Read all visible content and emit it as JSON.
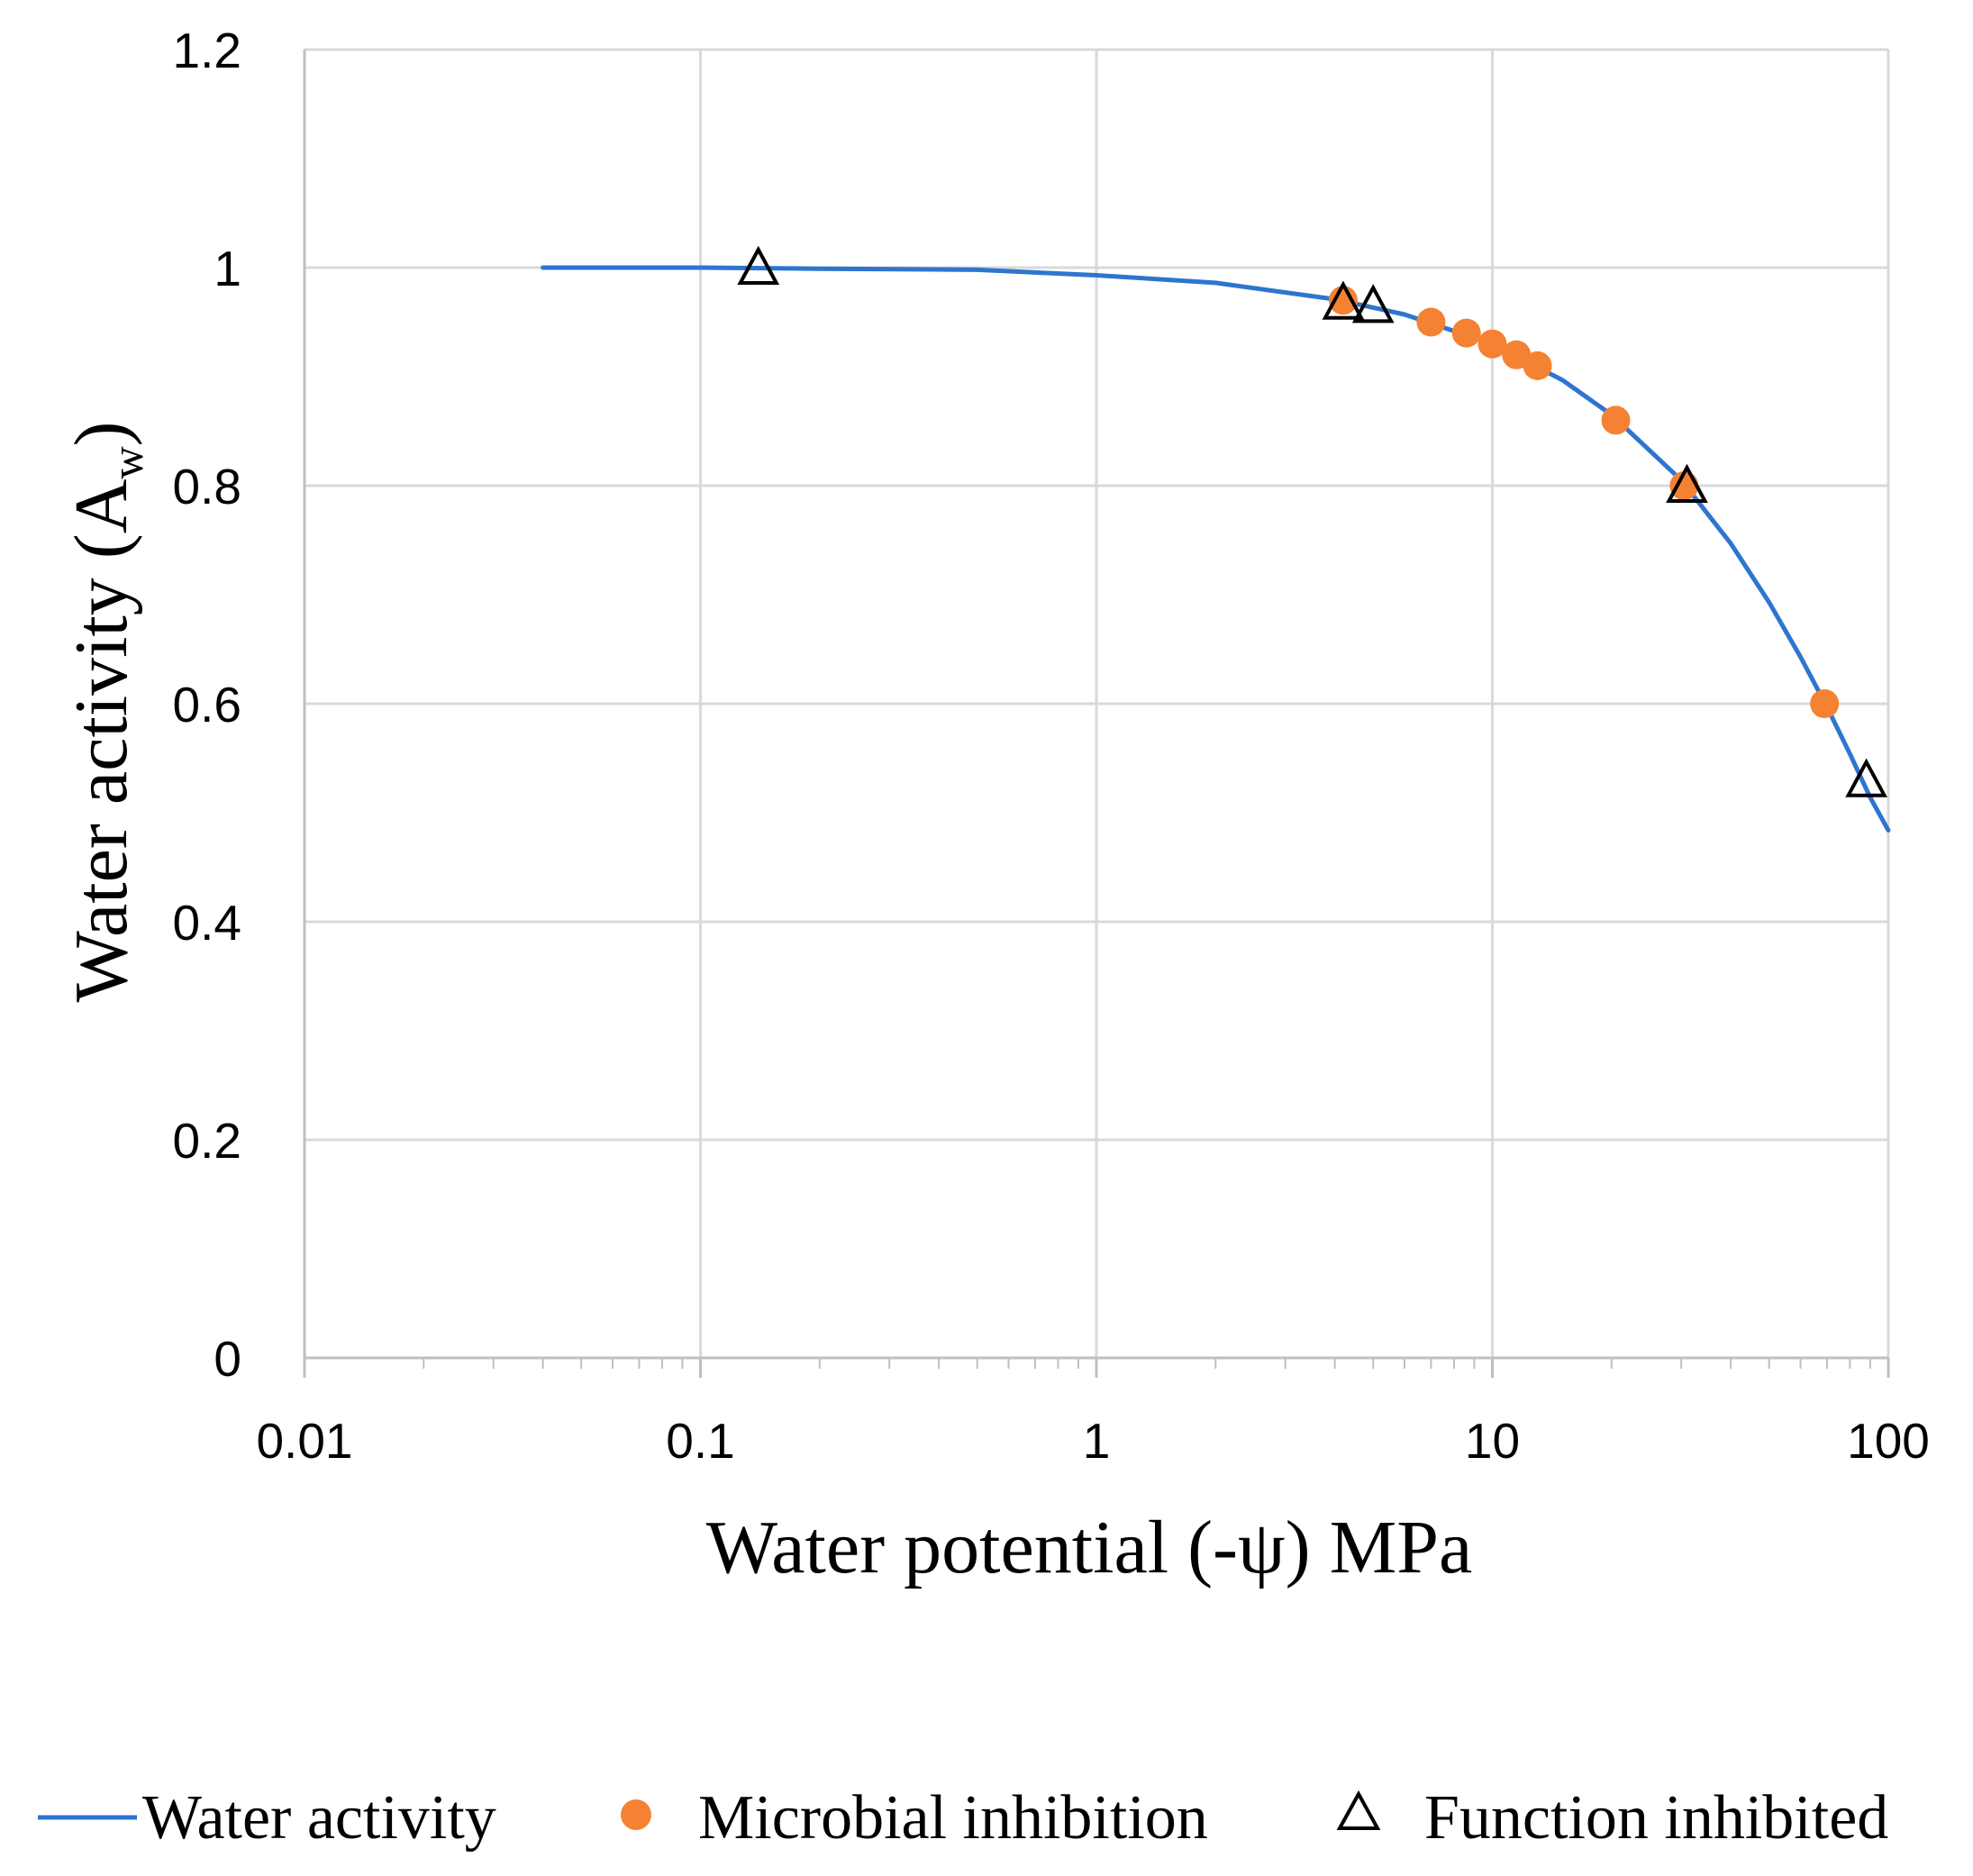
{
  "chart_data": {
    "type": "line",
    "x_scale": "log",
    "xlabel": "Water potential (-ψ) MPa",
    "ylabel_main": "Water activity (A",
    "ylabel_sub": "w",
    "ylabel_close": ")",
    "xlim": [
      0.01,
      100
    ],
    "ylim": [
      0,
      1.2
    ],
    "x_ticks": [
      0.01,
      0.1,
      1,
      10,
      100
    ],
    "x_tick_labels": [
      "0.01",
      "0.1",
      "1",
      "10",
      "100"
    ],
    "y_ticks": [
      0,
      0.2,
      0.4,
      0.6,
      0.8,
      1.0,
      1.2
    ],
    "y_tick_labels": [
      "0",
      "0.2",
      "0.4",
      "0.6",
      "0.8",
      "1",
      "1.2"
    ],
    "grid": true,
    "legend_position": "bottom",
    "series": [
      {
        "name": "Water activity",
        "kind": "line",
        "color": "#2e75d0",
        "x": [
          0.04,
          0.1,
          0.2,
          0.5,
          1,
          2,
          4,
          6,
          10,
          15,
          20,
          30,
          40,
          50,
          60,
          70,
          80,
          90,
          100
        ],
        "y": [
          1.0,
          1.0,
          0.999,
          0.998,
          0.993,
          0.986,
          0.971,
          0.957,
          0.93,
          0.897,
          0.865,
          0.805,
          0.747,
          0.693,
          0.643,
          0.597,
          0.554,
          0.514,
          0.484
        ]
      },
      {
        "name": "Microbial inhibition",
        "kind": "scatter",
        "marker": "circle",
        "color": "#f58232",
        "x": [
          4.2,
          7.0,
          8.6,
          10.0,
          11.5,
          13.0,
          20.5,
          30.5,
          69.0
        ],
        "y": [
          0.97,
          0.95,
          0.94,
          0.93,
          0.92,
          0.91,
          0.86,
          0.8,
          0.6
        ]
      },
      {
        "name": "Function inhibited",
        "kind": "scatter",
        "marker": "triangle",
        "color": "#000000",
        "x": [
          0.14,
          4.2,
          5.0,
          31.0,
          88.0
        ],
        "y": [
          1.0,
          0.968,
          0.965,
          0.8,
          0.53
        ]
      }
    ]
  }
}
